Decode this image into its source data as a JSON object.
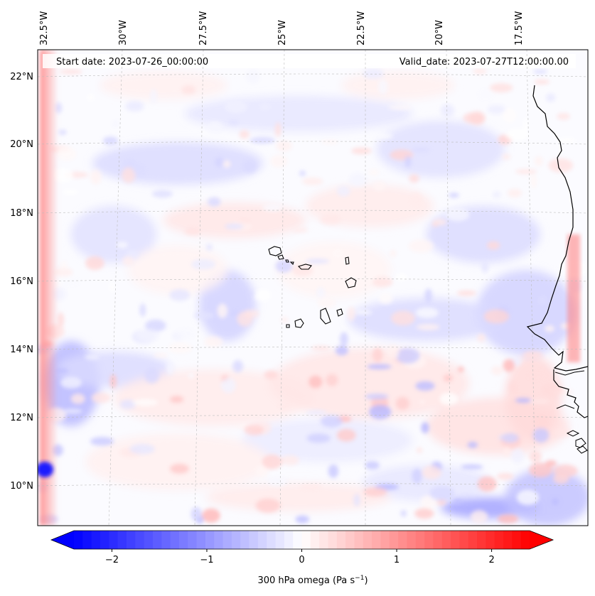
{
  "map": {
    "start_date": "Start date: 2023-07-26_00:00:00",
    "valid_date": "Valid_date: 2023-07-27T12:00:00.00",
    "lon_labels": [
      "32.5°W",
      "30°W",
      "27.5°W",
      "25°W",
      "22.5°W",
      "20°W",
      "17.5°W"
    ],
    "lat_labels": [
      "22°N",
      "20°N",
      "18°N",
      "16°N",
      "14°N",
      "12°N",
      "10°N"
    ],
    "colorbar": {
      "ticks": [
        "−2",
        "−1",
        "0",
        "1",
        "2"
      ],
      "label": "300 hPa omega (Pa s",
      "label_sup": "−1",
      "label_tail": ")",
      "range": [
        -2.6,
        2.6
      ],
      "negative_color": "#0000ff",
      "zero_color": "#ffffff",
      "positive_color": "#ff0000"
    }
  }
}
